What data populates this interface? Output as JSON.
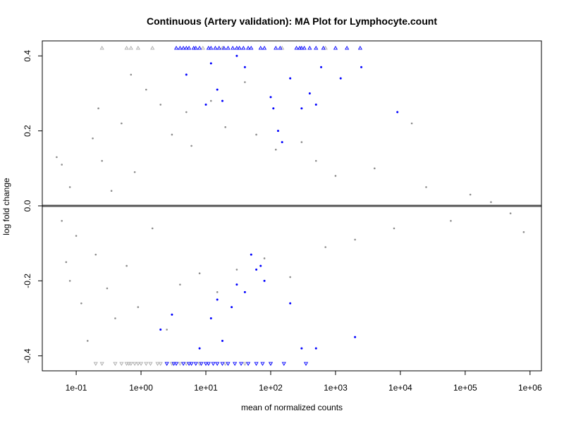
{
  "chart_data": {
    "type": "scatter",
    "title": "Continuous (Artery validation): MA Plot for Lymphocyte.count",
    "xlabel": "mean of normalized counts",
    "ylabel": "log fold change",
    "x_scale": "log10",
    "xlim": [
      0.03,
      1500000
    ],
    "ylim": [
      -0.44,
      0.44
    ],
    "x_ticks": [
      {
        "value": 0.1,
        "label": "1e-01"
      },
      {
        "value": 1,
        "label": "1e+00"
      },
      {
        "value": 10,
        "label": "1e+01"
      },
      {
        "value": 100,
        "label": "1e+02"
      },
      {
        "value": 1000,
        "label": "1e+03"
      },
      {
        "value": 10000,
        "label": "1e+04"
      },
      {
        "value": 100000,
        "label": "1e+05"
      },
      {
        "value": 1000000,
        "label": "1e+06"
      }
    ],
    "y_ticks": [
      {
        "value": -0.4,
        "label": "-0.4"
      },
      {
        "value": -0.2,
        "label": "-0.2"
      },
      {
        "value": 0.0,
        "label": "0.0"
      },
      {
        "value": 0.2,
        "label": "0.2"
      },
      {
        "value": 0.4,
        "label": "0.4"
      }
    ],
    "reference_line": {
      "y": 0,
      "color": "#555555"
    },
    "colors": {
      "not_significant": "#8c8c8c",
      "significant": "#0000ff",
      "clipped_ns": "#aaaaaa"
    },
    "grid": false,
    "series": [
      {
        "key": "not_significant",
        "color": "#8c8c8c",
        "points": [
          [
            0.05,
            0.13
          ],
          [
            0.06,
            0.11
          ],
          [
            0.06,
            -0.04
          ],
          [
            0.07,
            -0.15
          ],
          [
            0.08,
            0.05
          ],
          [
            0.08,
            -0.2
          ],
          [
            0.1,
            -0.08
          ],
          [
            0.12,
            -0.26
          ],
          [
            0.15,
            -0.36
          ],
          [
            0.18,
            0.18
          ],
          [
            0.2,
            -0.13
          ],
          [
            0.22,
            0.26
          ],
          [
            0.25,
            0.12
          ],
          [
            0.3,
            -0.22
          ],
          [
            0.35,
            0.04
          ],
          [
            0.4,
            -0.3
          ],
          [
            0.5,
            0.22
          ],
          [
            0.6,
            -0.16
          ],
          [
            0.7,
            0.35
          ],
          [
            0.8,
            0.09
          ],
          [
            0.9,
            -0.27
          ],
          [
            1.2,
            0.31
          ],
          [
            1.5,
            -0.06
          ],
          [
            2.0,
            0.27
          ],
          [
            2.5,
            -0.33
          ],
          [
            3.0,
            0.19
          ],
          [
            4.0,
            -0.21
          ],
          [
            5.0,
            0.25
          ],
          [
            6.0,
            0.16
          ],
          [
            8.0,
            -0.18
          ],
          [
            12.0,
            0.28
          ],
          [
            15.0,
            -0.23
          ],
          [
            20.0,
            0.21
          ],
          [
            30.0,
            -0.17
          ],
          [
            40.0,
            0.33
          ],
          [
            60.0,
            0.19
          ],
          [
            80.0,
            -0.14
          ],
          [
            120.0,
            0.15
          ],
          [
            200.0,
            -0.19
          ],
          [
            300.0,
            0.17
          ],
          [
            500.0,
            0.12
          ],
          [
            700.0,
            -0.11
          ],
          [
            1000.0,
            0.08
          ],
          [
            2000.0,
            -0.09
          ],
          [
            4000.0,
            0.1
          ],
          [
            8000.0,
            -0.06
          ],
          [
            15000.0,
            0.22
          ],
          [
            25000.0,
            0.05
          ],
          [
            60000.0,
            -0.04
          ],
          [
            120000.0,
            0.03
          ],
          [
            250000.0,
            0.01
          ],
          [
            500000.0,
            -0.02
          ],
          [
            800000.0,
            -0.07
          ]
        ]
      },
      {
        "key": "significant",
        "color": "#0000ff",
        "points": [
          [
            5.0,
            0.35
          ],
          [
            10.0,
            0.27
          ],
          [
            12.0,
            0.38
          ],
          [
            15.0,
            0.31
          ],
          [
            18.0,
            0.28
          ],
          [
            30.0,
            0.4
          ],
          [
            40.0,
            0.37
          ],
          [
            100.0,
            0.29
          ],
          [
            110.0,
            0.26
          ],
          [
            130.0,
            0.2
          ],
          [
            150.0,
            0.17
          ],
          [
            200.0,
            0.34
          ],
          [
            300.0,
            0.26
          ],
          [
            400.0,
            0.3
          ],
          [
            500.0,
            0.27
          ],
          [
            600.0,
            0.37
          ],
          [
            1200.0,
            0.34
          ],
          [
            2500.0,
            0.37
          ],
          [
            9000.0,
            0.25
          ],
          [
            2.0,
            -0.33
          ],
          [
            3.0,
            -0.29
          ],
          [
            8.0,
            -0.38
          ],
          [
            12.0,
            -0.3
          ],
          [
            15.0,
            -0.25
          ],
          [
            18.0,
            -0.36
          ],
          [
            25.0,
            -0.27
          ],
          [
            30.0,
            -0.21
          ],
          [
            40.0,
            -0.23
          ],
          [
            50.0,
            -0.13
          ],
          [
            60.0,
            -0.17
          ],
          [
            70.0,
            -0.16
          ],
          [
            80.0,
            -0.2
          ],
          [
            200.0,
            -0.26
          ],
          [
            300.0,
            -0.38
          ],
          [
            500.0,
            -0.38
          ],
          [
            2000.0,
            -0.35
          ]
        ]
      }
    ],
    "clipped_points": {
      "top": {
        "y": 0.4,
        "grey_x": [
          0.25,
          0.6,
          0.7,
          0.9,
          1.5,
          9.0,
          18.0,
          150.0,
          700.0
        ],
        "blue_x": [
          3.5,
          4.0,
          4.5,
          5.0,
          5.5,
          6.5,
          7.0,
          8.0,
          11.0,
          12.0,
          14.0,
          16.0,
          19.0,
          22.0,
          26.0,
          30.0,
          33.0,
          38.0,
          45.0,
          50.0,
          70.0,
          80.0,
          120.0,
          140.0,
          250.0,
          280.0,
          300.0,
          330.0,
          400.0,
          500.0,
          650.0,
          1000.0,
          1500.0,
          2400.0
        ]
      },
      "bottom": {
        "y": -0.4,
        "grey_x": [
          0.2,
          0.25,
          0.4,
          0.5,
          0.6,
          0.65,
          0.7,
          0.8,
          0.9,
          1.0,
          1.2,
          1.4,
          1.8,
          2.0,
          2.5,
          3.0,
          4.0,
          5.0,
          8.0,
          20.0,
          40.0,
          100.0
        ],
        "blue_x": [
          2.5,
          3.2,
          3.5,
          4.5,
          5.5,
          6.0,
          7.0,
          8.5,
          10.0,
          11.0,
          13.0,
          15.0,
          18.0,
          22.0,
          28.0,
          35.0,
          45.0,
          60.0,
          75.0,
          100.0,
          160.0,
          350.0
        ]
      }
    }
  }
}
